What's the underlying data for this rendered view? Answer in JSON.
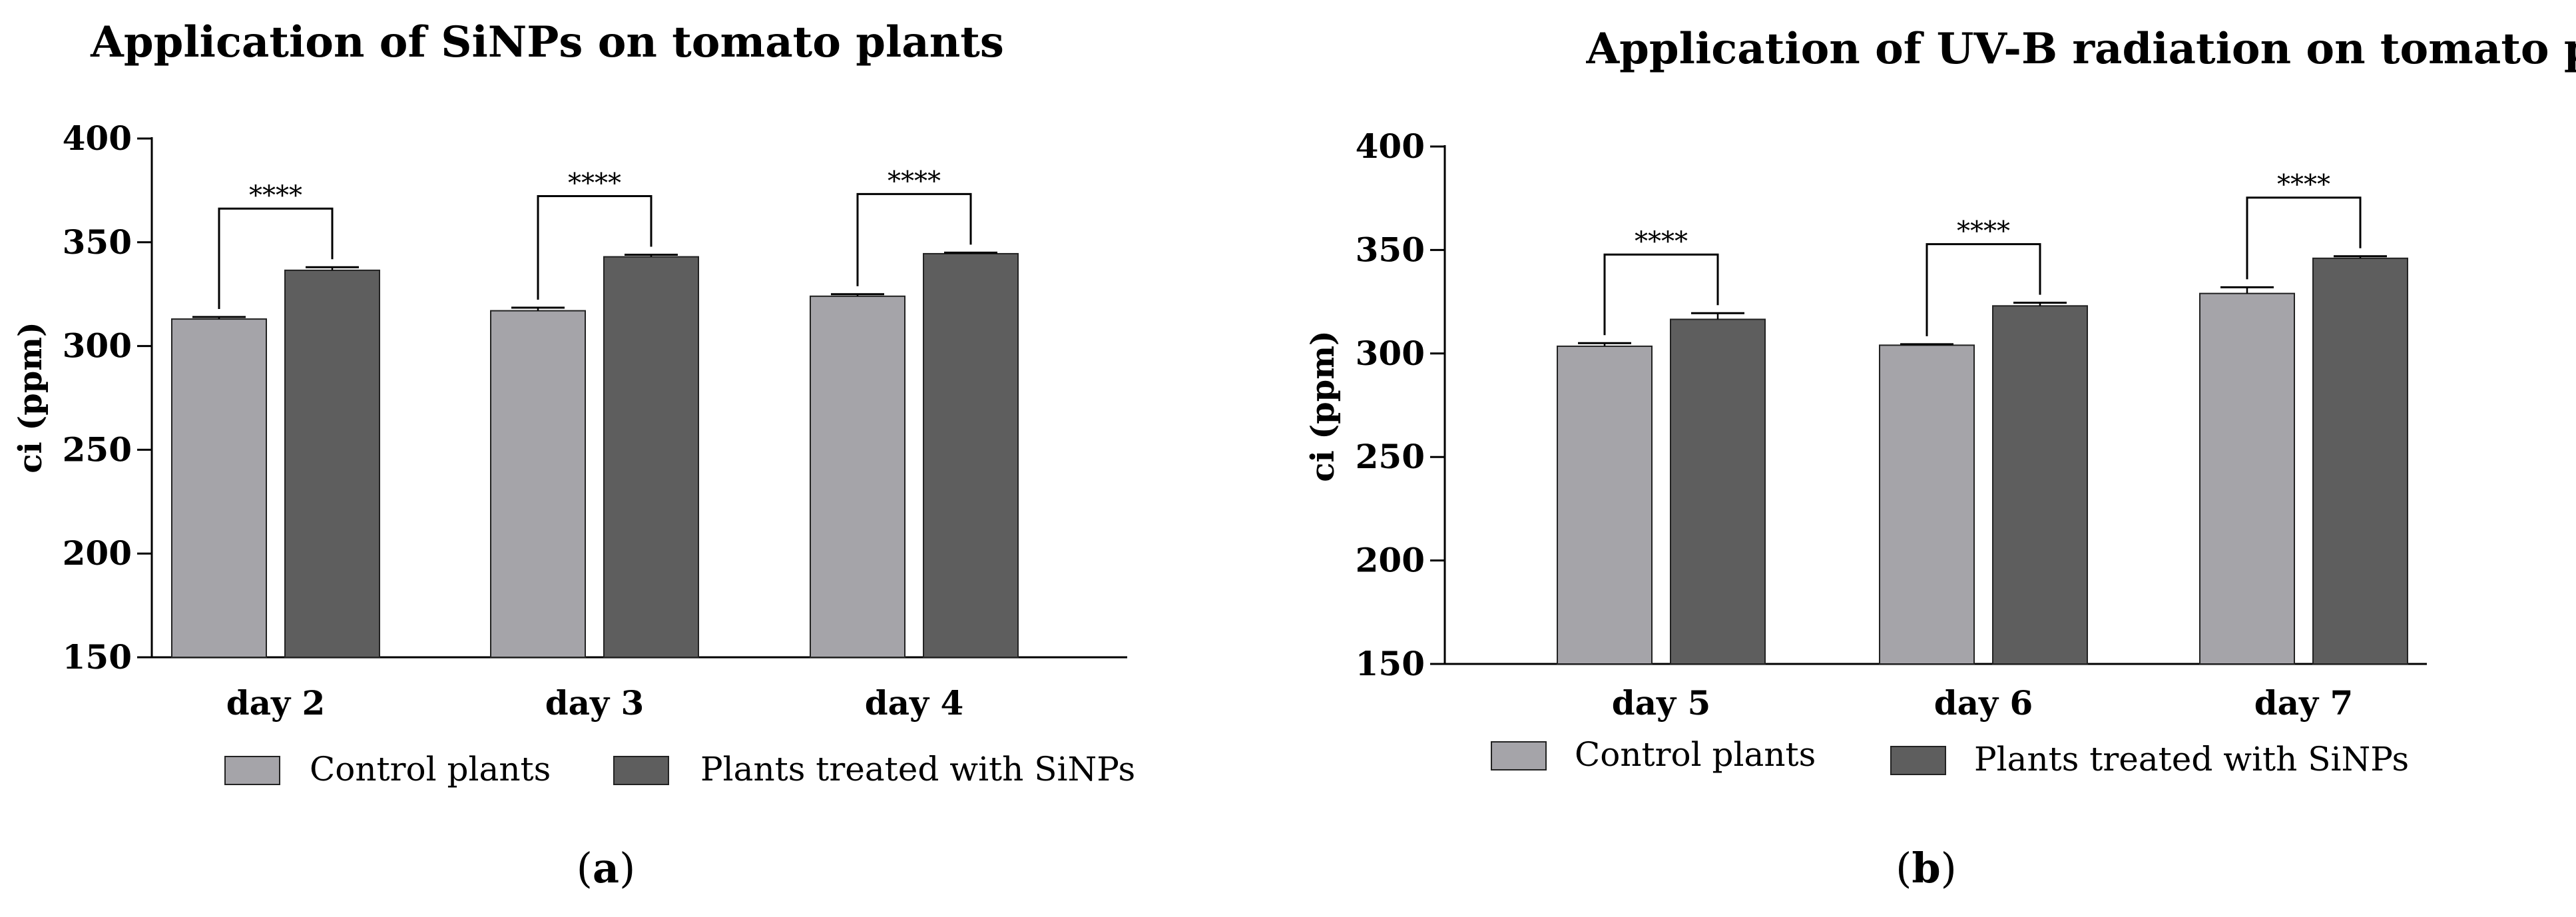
{
  "chart_data": [
    {
      "type": "bar",
      "title": "Application of SiNPs on tomato plants",
      "ylabel": "ci (ppm)",
      "xlabel": "",
      "ylim": [
        150,
        400
      ],
      "yticks": [
        150,
        200,
        250,
        300,
        350,
        400
      ],
      "categories": [
        "day 2",
        "day 3",
        "day 4"
      ],
      "series": [
        {
          "name": "Control plants",
          "color": "#a5a4a9",
          "values": [
            313,
            317,
            324
          ],
          "errors": [
            1,
            1.5,
            1
          ]
        },
        {
          "name": "Plants treated with SiNPs",
          "color": "#5e5e5e",
          "values": [
            336.5,
            343,
            344.5
          ],
          "errors": [
            1.5,
            1,
            0.5
          ]
        }
      ],
      "significance": [
        "****",
        "****",
        "****"
      ],
      "legend_position": "bottom",
      "caption_letter": "a"
    },
    {
      "type": "bar",
      "title": "Application of UV-B radiation on tomato plants",
      "ylabel": "ci (ppm)",
      "xlabel": "",
      "ylim": [
        150,
        400
      ],
      "yticks": [
        150,
        200,
        250,
        300,
        350,
        400
      ],
      "categories": [
        "day 5",
        "day 6",
        "day 7"
      ],
      "series": [
        {
          "name": "Control plants",
          "color": "#a5a4a9",
          "values": [
            303.5,
            304,
            329
          ],
          "errors": [
            1.5,
            0.5,
            3
          ]
        },
        {
          "name": "Plants treated with SiNPs",
          "color": "#5e5e5e",
          "values": [
            316.5,
            323,
            346
          ],
          "errors": [
            3,
            1.5,
            1
          ]
        }
      ],
      "significance": [
        "****",
        "****",
        "****"
      ],
      "legend_position": "bottom",
      "caption_letter": "b"
    }
  ]
}
